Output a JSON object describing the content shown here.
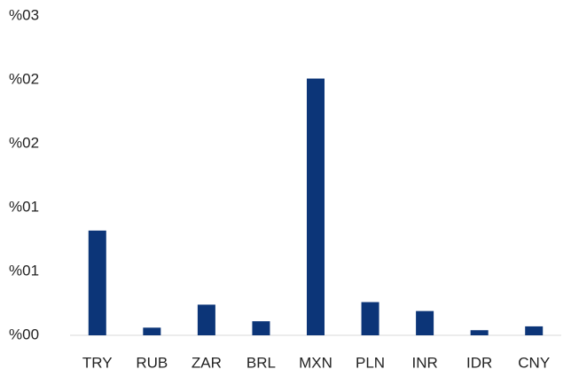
{
  "chart_data": {
    "type": "bar",
    "categories": [
      "TRY",
      "RUB",
      "ZAR",
      "BRL",
      "MXN",
      "PLN",
      "INR",
      "IDR",
      "CNY"
    ],
    "values": [
      0.82,
      0.06,
      0.24,
      0.11,
      2.01,
      0.26,
      0.19,
      0.04,
      0.07
    ],
    "color": "#0c3578",
    "ylim": [
      0,
      2.5
    ],
    "yticks": [
      {
        "value": 0,
        "label": "%00"
      },
      {
        "value": 0.5,
        "label": "%01"
      },
      {
        "value": 1,
        "label": "%01"
      },
      {
        "value": 1.5,
        "label": "%02"
      },
      {
        "value": 2,
        "label": "%02"
      },
      {
        "value": 2.5,
        "label": "%03"
      }
    ],
    "grid": false
  }
}
